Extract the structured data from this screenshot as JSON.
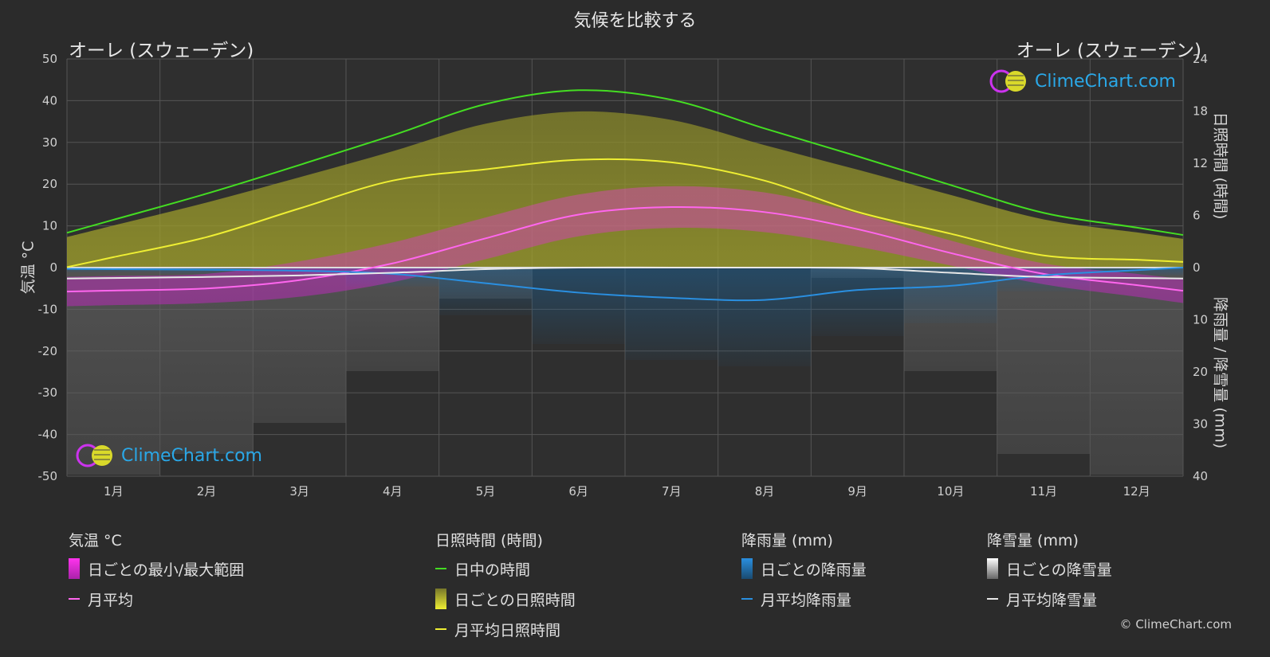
{
  "title": "気候を比較する",
  "location_left": "オーレ (スウェーデン)",
  "location_right": "オーレ (スウェーデン)",
  "axis_left_title": "気温 °C",
  "axis_right_top_title": "日照時間 (時間)",
  "axis_right_bottom_title": "降雨量 / 降雪量 (mm)",
  "brand": "ClimeChart.com",
  "copyright": "© ClimeChart.com",
  "colors": {
    "background": "#2b2b2b",
    "daylight": "#44dd22",
    "sunshine": "#eeee33",
    "temp_avg": "#ff66ee",
    "rain_avg": "#2a8fe0",
    "snow_avg": "#e8e8e8"
  },
  "legend": {
    "temp": {
      "title": "気温 °C",
      "range": "日ごとの最小/最大範囲",
      "avg": "月平均"
    },
    "sun": {
      "title": "日照時間 (時間)",
      "daylight": "日中の時間",
      "daily": "日ごとの日照時間",
      "avg": "月平均日照時間"
    },
    "rain": {
      "title": "降雨量 (mm)",
      "daily": "日ごとの降雨量",
      "avg": "月平均降雨量"
    },
    "snow": {
      "title": "降雪量 (mm)",
      "daily": "日ごとの降雪量",
      "avg": "月平均降雪量"
    }
  },
  "chart_data": {
    "type": "line",
    "categories": [
      "1月",
      "2月",
      "3月",
      "4月",
      "5月",
      "6月",
      "7月",
      "8月",
      "9月",
      "10月",
      "11月",
      "12月"
    ],
    "y_left": {
      "min": -50,
      "max": 50,
      "ticks": [
        "50",
        "40",
        "30",
        "20",
        "10",
        "0",
        "-10",
        "-20",
        "-30",
        "-40",
        "-50"
      ]
    },
    "y_right_top": {
      "min": 0,
      "max": 24,
      "ticks": [
        "24",
        "18",
        "12",
        "6",
        "0"
      ]
    },
    "y_right_bottom": {
      "min": 0,
      "max": 40,
      "ticks": [
        "0",
        "10",
        "20",
        "30",
        "40"
      ]
    },
    "grid": true,
    "series": {
      "daylight_hours": [
        5.5,
        8.5,
        11.8,
        15.2,
        18.8,
        20.4,
        19.3,
        16.0,
        12.8,
        9.5,
        6.3,
        4.6
      ],
      "sunshine_monthly_avg": [
        1.2,
        3.5,
        6.8,
        10.0,
        11.3,
        12.4,
        12.1,
        10.0,
        6.4,
        3.9,
        1.4,
        0.9
      ],
      "temp_monthly_avg": [
        -5.5,
        -5.0,
        -3.0,
        1.0,
        7.0,
        12.7,
        14.5,
        13.3,
        9.2,
        3.5,
        -1.5,
        -4.2
      ],
      "temp_daily_max": [
        -2.0,
        -1.5,
        1.5,
        6.0,
        12.0,
        17.5,
        19.5,
        18.0,
        13.0,
        6.5,
        1.0,
        -1.5
      ],
      "temp_daily_min": [
        -9.0,
        -8.5,
        -7.0,
        -3.5,
        2.0,
        7.5,
        9.5,
        8.5,
        5.0,
        0.5,
        -4.0,
        -7.0
      ],
      "rain_monthly_avg": [
        0.3,
        0.4,
        0.6,
        1.2,
        3.0,
        4.8,
        5.8,
        6.2,
        4.3,
        3.5,
        1.5,
        0.5
      ],
      "snow_monthly_avg": [
        2.0,
        1.8,
        1.5,
        1.0,
        0.3,
        0.0,
        0.0,
        0.0,
        0.1,
        1.0,
        1.8,
        2.0
      ]
    }
  }
}
